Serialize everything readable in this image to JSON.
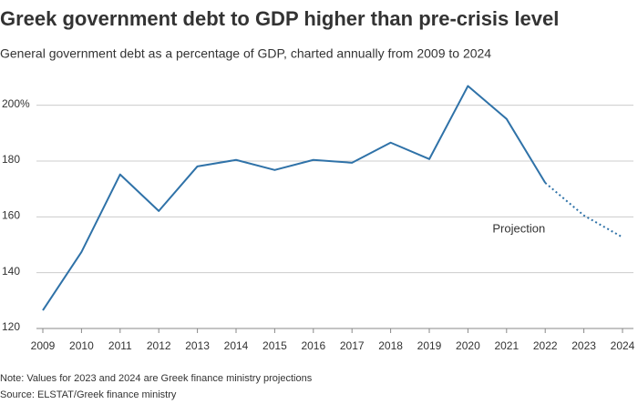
{
  "chart_data": {
    "type": "line",
    "title": "Greek government debt to GDP higher than pre-crisis level",
    "subtitle": "General government debt as a percentage of GDP, charted annually from 2009 to 2024",
    "x": [
      2009,
      2010,
      2011,
      2012,
      2013,
      2014,
      2015,
      2016,
      2017,
      2018,
      2019,
      2020,
      2021,
      2022,
      2023,
      2024
    ],
    "series": [
      {
        "color": "#2f72a8",
        "dash": "solid",
        "values": [
          126.5,
          147.4,
          175.2,
          162.1,
          178.1,
          180.4,
          176.8,
          180.4,
          179.4,
          186.6,
          180.7,
          206.9,
          195.1,
          172.2,
          null,
          null
        ]
      },
      {
        "name": "Projection",
        "color": "#2f72a8",
        "dash": "dotted",
        "values": [
          null,
          null,
          null,
          null,
          null,
          null,
          null,
          null,
          null,
          null,
          null,
          null,
          null,
          172.2,
          160.5,
          152.7
        ]
      }
    ],
    "xlim": [
      2009,
      2024
    ],
    "xticks": [
      2009,
      2010,
      2011,
      2012,
      2013,
      2014,
      2015,
      2016,
      2017,
      2018,
      2019,
      2020,
      2021,
      2022,
      2023,
      2024
    ],
    "ylim": [
      120,
      210
    ],
    "yticks": [
      120,
      140,
      160,
      180,
      {
        "value": 200,
        "label": "200%"
      }
    ],
    "grid": true,
    "note": "Note: Values for 2023 and 2024 are Greek finance ministry projections",
    "source": "Source: ELSTAT/Greek finance ministry"
  }
}
